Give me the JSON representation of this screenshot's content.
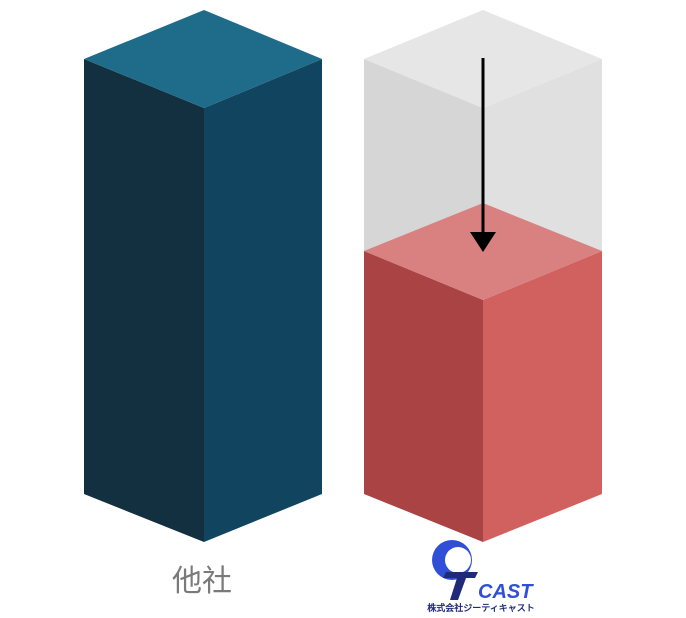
{
  "comparison": {
    "left": {
      "label": "他社",
      "colors": {
        "top": "#1e6b8a",
        "left": "#12303f",
        "right": "#11455f"
      }
    },
    "right": {
      "colors": {
        "ghost_top": "#e6e6e6",
        "ghost_left": "#d6d6d6",
        "ghost_right": "#e0e0e0",
        "top": "#d98080",
        "left": "#aa4343",
        "right": "#d0615f"
      },
      "reduction_fraction": 0.42
    }
  },
  "logo": {
    "wordmark": "CAST",
    "company_name": "株式会社ジーティキャスト",
    "colors": {
      "navy": "#1f2a78",
      "blue": "#2f4fd6"
    }
  },
  "arrow": {
    "color": "#000000"
  }
}
